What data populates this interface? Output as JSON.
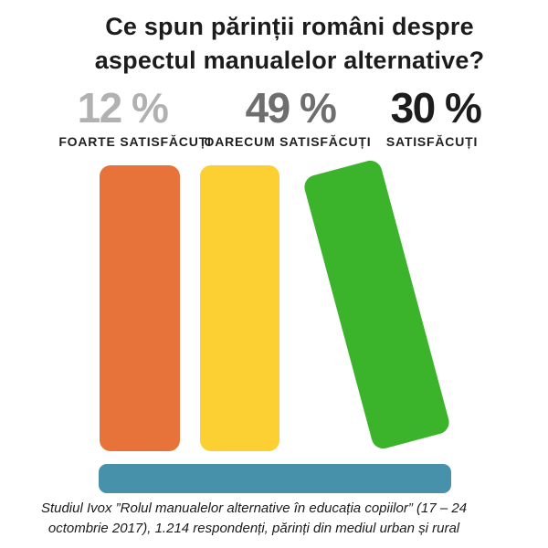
{
  "title": {
    "line1": "Ce spun părinții români despre",
    "line2": "aspectul manualelor alternative?"
  },
  "stats": [
    {
      "value": "12 %",
      "label": "FOARTE SATISFĂCUȚI",
      "color": "#b1b1b1"
    },
    {
      "value": "49 %",
      "label": "OARECUM SATISFĂCUȚI",
      "color": "#6e6e6e"
    },
    {
      "value": "30 %",
      "label": "SATISFĂCUȚI",
      "color": "#1d1d1d"
    }
  ],
  "books": [
    {
      "name": "book-orange",
      "color": "#e7723a"
    },
    {
      "name": "book-yellow",
      "color": "#fccf33"
    },
    {
      "name": "book-green",
      "color": "#3bb42c"
    }
  ],
  "shelf": {
    "color": "#4791ab"
  },
  "footer": {
    "line1": "Studiul Ivox ”Rolul manualelor alternative în educația copiilor” (17 – 24",
    "line2": "octombrie 2017), 1.214 respondenți, părinți din mediul urban și rural"
  },
  "chart_data": {
    "type": "bar",
    "title": "Ce spun părinții români despre aspectul manualelor alternative?",
    "categories": [
      "FOARTE SATISFĂCUȚI",
      "OARECUM SATISFĂCUȚI",
      "SATISFĂCUȚI"
    ],
    "values": [
      12,
      49,
      30
    ],
    "unit": "%",
    "ylim": [
      0,
      100
    ],
    "grid": false,
    "legend_position": "none",
    "annotation": "Studiul Ivox ”Rolul manualelor alternative în educația copiilor” (17 – 24 octombrie 2017), 1.214 respondenți, părinți din mediul urban și rural"
  }
}
